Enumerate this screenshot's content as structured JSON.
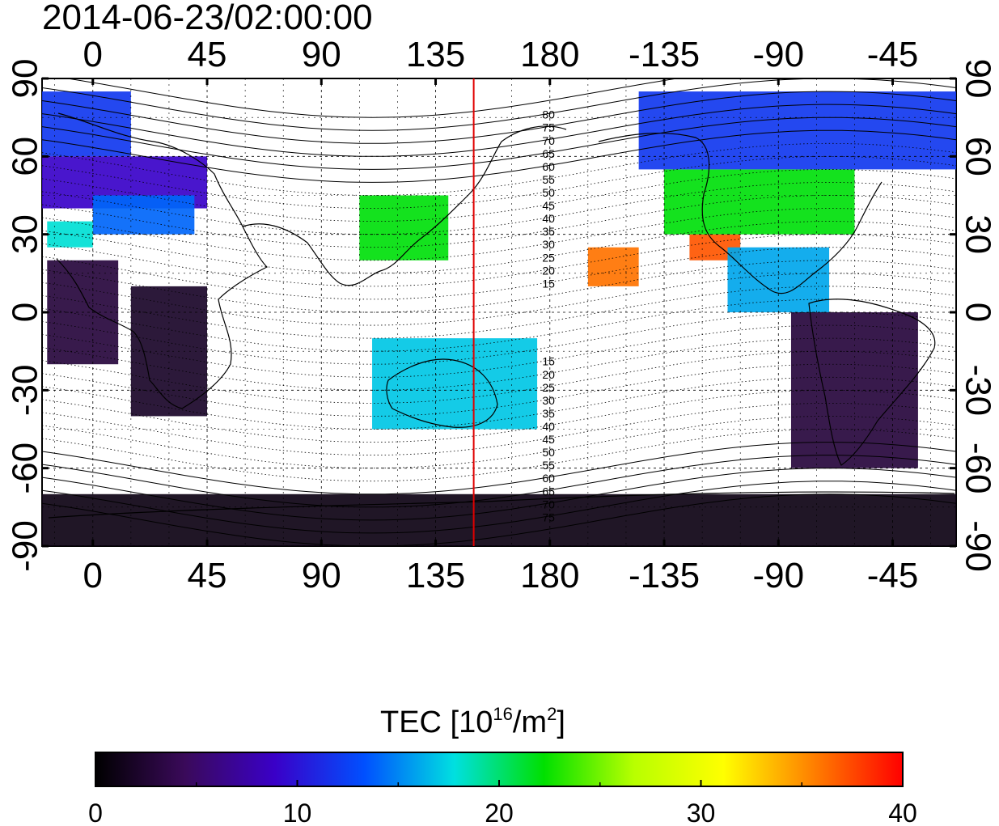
{
  "title": "2014-06-23/02:00:00",
  "map": {
    "x_ticks_top": [
      "0",
      "45",
      "90",
      "135",
      "180",
      "-135",
      "-90",
      "-45"
    ],
    "x_ticks_bottom": [
      "0",
      "45",
      "90",
      "135",
      "180",
      "-135",
      "-90",
      "-45"
    ],
    "y_ticks_left": [
      "90",
      "60",
      "30",
      "0",
      "-30",
      "-60",
      "-90"
    ],
    "y_ticks_right": [
      "90",
      "60",
      "30",
      "0",
      "-30",
      "-60",
      "-90"
    ],
    "lon_ticks": [
      0,
      45,
      90,
      135,
      180,
      225,
      270,
      315
    ],
    "lat_ticks": [
      90,
      60,
      30,
      0,
      -30,
      -60,
      -90
    ],
    "lon_range": [
      -20,
      340
    ],
    "lat_range": [
      -90,
      90
    ],
    "marker_longitude": 150,
    "marker_color": "#e00000",
    "maglat_labels_north": [
      "80",
      "75",
      "70",
      "65",
      "60",
      "55",
      "50",
      "45",
      "40",
      "35",
      "30",
      "25",
      "20",
      "15"
    ],
    "maglat_labels_south": [
      "15",
      "20",
      "25",
      "30",
      "35",
      "40",
      "45",
      "50",
      "55",
      "60",
      "65",
      "70",
      "75"
    ]
  },
  "colorbar": {
    "title_prefix": "TEC  [10",
    "title_exp1": "16",
    "title_mid": "/m",
    "title_exp2": "2",
    "title_suffix": "]",
    "ticks": [
      "0",
      "10",
      "20",
      "30",
      "40"
    ],
    "min": 0,
    "max": 40,
    "colormap": [
      "#000000",
      "#3a0a5a",
      "#3a00c8",
      "#0050ff",
      "#00e0e0",
      "#00e000",
      "#b8ff00",
      "#ffff00",
      "#ff8000",
      "#ff0000"
    ]
  },
  "chart_data": {
    "type": "heatmap",
    "variable": "TEC",
    "units": "10^16/m^2",
    "time": "2014-06-23/02:00:00",
    "xlim": [
      -20,
      340
    ],
    "ylim": [
      -90,
      90
    ],
    "color_range": [
      0,
      40
    ],
    "cells": [
      {
        "lon": [
          -20,
          15
        ],
        "lat": [
          60,
          85
        ],
        "tec": 12
      },
      {
        "lon": [
          -20,
          45
        ],
        "lat": [
          40,
          60
        ],
        "tec": 9
      },
      {
        "lon": [
          0,
          40
        ],
        "lat": [
          30,
          45
        ],
        "tec": 14
      },
      {
        "lon": [
          -18,
          0
        ],
        "lat": [
          25,
          35
        ],
        "tec": 18
      },
      {
        "lon": [
          -18,
          10
        ],
        "lat": [
          -20,
          20
        ],
        "tec": 3
      },
      {
        "lon": [
          15,
          45
        ],
        "lat": [
          -40,
          10
        ],
        "tec": 2
      },
      {
        "lon": [
          105,
          140
        ],
        "lat": [
          20,
          45
        ],
        "tec": 22
      },
      {
        "lon": [
          110,
          175
        ],
        "lat": [
          -45,
          -10
        ],
        "tec": 17
      },
      {
        "lon": [
          195,
          215
        ],
        "lat": [
          10,
          25
        ],
        "tec": 36
      },
      {
        "lon": [
          235,
          255
        ],
        "lat": [
          20,
          30
        ],
        "tec": 37
      },
      {
        "lon": [
          225,
          300
        ],
        "lat": [
          30,
          55
        ],
        "tec": 22
      },
      {
        "lon": [
          215,
          340
        ],
        "lat": [
          55,
          85
        ],
        "tec": 12
      },
      {
        "lon": [
          250,
          290
        ],
        "lat": [
          0,
          25
        ],
        "tec": 16
      },
      {
        "lon": [
          275,
          325
        ],
        "lat": [
          -60,
          0
        ],
        "tec": 3
      },
      {
        "lon": [
          -20,
          340
        ],
        "lat": [
          -90,
          -70
        ],
        "tec": 1
      }
    ]
  }
}
